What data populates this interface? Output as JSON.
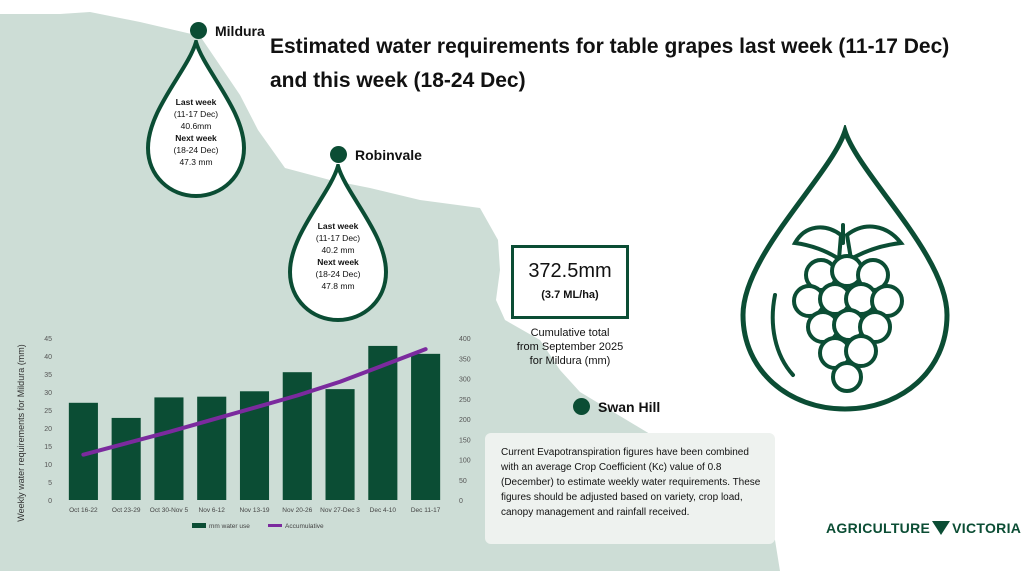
{
  "title": "Estimated water requirements for table grapes last week (11-17 Dec) and this week (18-24 Dec)",
  "colors": {
    "accent": "#0b4d34",
    "line": "#7b2a9e",
    "map": "#cdddd6",
    "note_bg": "#eef2ef"
  },
  "towns": {
    "mildura": "Mildura",
    "robinvale": "Robinvale",
    "swan_hill": "Swan Hill"
  },
  "drops": {
    "mildura": {
      "last_label": "Last week",
      "last_dates": "(11-17 Dec)",
      "last_value": "40.6mm",
      "next_label": "Next week",
      "next_dates": "(18-24 Dec)",
      "next_value": "47.3 mm"
    },
    "robinvale": {
      "last_label": "Last week",
      "last_dates": "(11-17 Dec)",
      "last_value": "40.2 mm",
      "next_label": "Next week",
      "next_dates": "(18-24 Dec)",
      "next_value": "47.8 mm"
    }
  },
  "cumulative": {
    "value": "372.5mm",
    "sub": "(3.7 ML/ha)",
    "caption_line1": "Cumulative total",
    "caption_line2": "from September 2025",
    "caption_line3": "for Mildura (mm)"
  },
  "note": "Current Evapotranspiration figures have been combined with an average Crop Coefficient (Kc) value of 0.8 (December) to estimate weekly water requirements. These figures should be adjusted based on variety, crop load, canopy management and rainfall received.",
  "logo": {
    "left": "AGRICULTURE",
    "right": "VICTORIA"
  },
  "icons": {
    "grape": "grape-drop-icon",
    "town": "location-dot-icon"
  },
  "chart_data": {
    "type": "bar+line",
    "categories": [
      "Oct 16-22",
      "Oct 23-29",
      "Oct 30-Nov 5",
      "Nov 6-12",
      "Nov 13-19",
      "Nov 20-26",
      "Nov 27-Dec 3",
      "Dec 4-10",
      "Dec 11-17"
    ],
    "series": [
      {
        "name": "mm water use",
        "type": "bar",
        "axis": "left",
        "values": [
          27,
          22.8,
          28.5,
          28.7,
          30.2,
          35.5,
          30.8,
          42.8,
          40.6
        ]
      },
      {
        "name": "Accumulative",
        "type": "line",
        "axis": "right",
        "values": [
          112,
          140,
          168,
          198,
          228,
          258,
          292,
          332,
          372.5
        ]
      }
    ],
    "ylabel": "Weekly water requirements for Mildura (mm)",
    "ylim_left": [
      0,
      45
    ],
    "yticks_left": [
      0,
      5,
      10,
      15,
      20,
      25,
      30,
      35,
      40,
      45
    ],
    "ylim_right": [
      0,
      400
    ],
    "yticks_right": [
      0,
      50,
      100,
      150,
      200,
      250,
      300,
      350,
      400
    ],
    "legend_position": "bottom-center"
  }
}
